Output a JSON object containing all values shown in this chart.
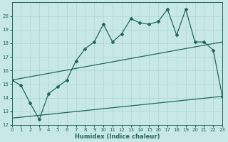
{
  "xlabel": "Humidex (Indice chaleur)",
  "bg_color": "#c8e8e8",
  "grid_color": "#b0d8d8",
  "line_color": "#206858",
  "xlim": [
    0,
    23
  ],
  "ylim": [
    12,
    21
  ],
  "xticks": [
    0,
    1,
    2,
    3,
    4,
    5,
    6,
    7,
    8,
    9,
    10,
    11,
    12,
    13,
    14,
    15,
    16,
    17,
    18,
    19,
    20,
    21,
    22,
    23
  ],
  "yticks": [
    12,
    13,
    14,
    15,
    16,
    17,
    18,
    19,
    20
  ],
  "series1_x": [
    0,
    1,
    2,
    3,
    4,
    5,
    6,
    7,
    8,
    9,
    10,
    11,
    12,
    13,
    14,
    15,
    16,
    17,
    18,
    19,
    20,
    21,
    22,
    23
  ],
  "series1_y": [
    15.3,
    14.9,
    13.6,
    12.4,
    14.3,
    14.8,
    15.3,
    16.7,
    17.6,
    18.1,
    19.4,
    18.1,
    18.7,
    19.8,
    19.5,
    19.4,
    19.6,
    20.5,
    18.6,
    20.5,
    18.1,
    18.1,
    17.5,
    14.1
  ],
  "series2_x": [
    0,
    23
  ],
  "series2_y": [
    15.3,
    18.1
  ],
  "series3_x": [
    0,
    23
  ],
  "series3_y": [
    12.5,
    14.1
  ],
  "marker": "D",
  "marker_size": 2.0,
  "line_width": 0.9
}
